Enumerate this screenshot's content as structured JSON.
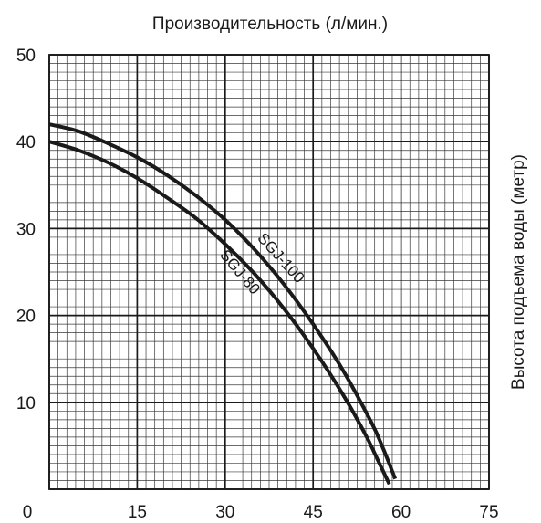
{
  "chart_data": {
    "type": "line",
    "title": "",
    "xlabel": "Производительность (л/мин.)",
    "ylabel": "Высота подъема воды (метр)",
    "x_ticks": [
      "0",
      "15",
      "30",
      "45",
      "60",
      "75"
    ],
    "y_ticks": [
      "10",
      "20",
      "30",
      "40",
      "50"
    ],
    "xlim": [
      0,
      75
    ],
    "ylim": [
      0,
      50
    ],
    "grid": true,
    "series": [
      {
        "name": "SGJ-100",
        "points": [
          [
            0,
            42
          ],
          [
            5,
            41.2
          ],
          [
            10,
            39.8
          ],
          [
            15,
            38.2
          ],
          [
            20,
            36.2
          ],
          [
            25,
            33.8
          ],
          [
            30,
            31
          ],
          [
            35,
            27.6
          ],
          [
            40,
            23.6
          ],
          [
            45,
            19
          ],
          [
            50,
            13.8
          ],
          [
            55,
            7.6
          ],
          [
            57,
            4.6
          ],
          [
            59,
            1.2
          ]
        ]
      },
      {
        "name": "SGJ-80",
        "points": [
          [
            0,
            40
          ],
          [
            5,
            39
          ],
          [
            10,
            37.6
          ],
          [
            15,
            35.8
          ],
          [
            20,
            33.6
          ],
          [
            25,
            31.2
          ],
          [
            30,
            28.2
          ],
          [
            35,
            24.8
          ],
          [
            40,
            20.8
          ],
          [
            45,
            16.2
          ],
          [
            50,
            11
          ],
          [
            54,
            6.2
          ],
          [
            56,
            3.4
          ],
          [
            58,
            0.6
          ]
        ]
      }
    ]
  }
}
